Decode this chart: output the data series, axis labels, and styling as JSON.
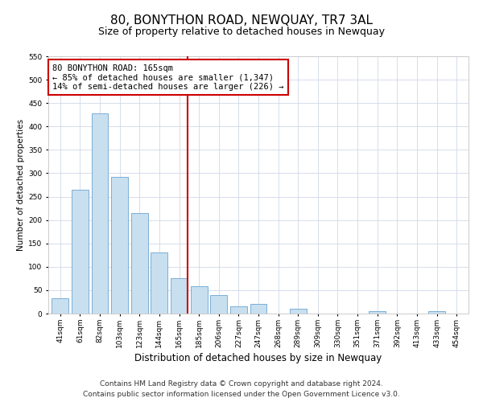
{
  "title": "80, BONYTHON ROAD, NEWQUAY, TR7 3AL",
  "subtitle": "Size of property relative to detached houses in Newquay",
  "xlabel": "Distribution of detached houses by size in Newquay",
  "ylabel": "Number of detached properties",
  "bar_labels": [
    "41sqm",
    "61sqm",
    "82sqm",
    "103sqm",
    "123sqm",
    "144sqm",
    "165sqm",
    "185sqm",
    "206sqm",
    "227sqm",
    "247sqm",
    "268sqm",
    "289sqm",
    "309sqm",
    "330sqm",
    "351sqm",
    "371sqm",
    "392sqm",
    "413sqm",
    "433sqm",
    "454sqm"
  ],
  "bar_heights": [
    32,
    265,
    428,
    293,
    214,
    130,
    75,
    59,
    40,
    15,
    20,
    0,
    10,
    0,
    0,
    0,
    5,
    0,
    0,
    5,
    0
  ],
  "bar_color": "#c8dff0",
  "bar_edge_color": "#7bafd4",
  "highlight_bar_index": 6,
  "highlight_line_color": "#cc0000",
  "annotation_title": "80 BONYTHON ROAD: 165sqm",
  "annotation_line1": "← 85% of detached houses are smaller (1,347)",
  "annotation_line2": "14% of semi-detached houses are larger (226) →",
  "annotation_box_color": "#ffffff",
  "annotation_box_edge": "#cc0000",
  "ylim": [
    0,
    550
  ],
  "yticks": [
    0,
    50,
    100,
    150,
    200,
    250,
    300,
    350,
    400,
    450,
    500,
    550
  ],
  "footer_line1": "Contains HM Land Registry data © Crown copyright and database right 2024.",
  "footer_line2": "Contains public sector information licensed under the Open Government Licence v3.0.",
  "title_fontsize": 11,
  "subtitle_fontsize": 9,
  "xlabel_fontsize": 8.5,
  "ylabel_fontsize": 7.5,
  "tick_fontsize": 6.5,
  "annotation_fontsize": 7.5,
  "footer_fontsize": 6.5
}
